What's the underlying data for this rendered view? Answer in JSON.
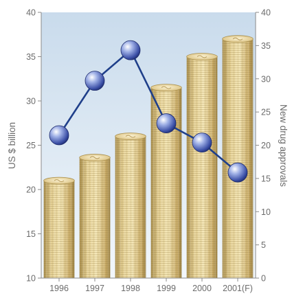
{
  "chart_data": {
    "type": "bar+line",
    "categories": [
      "1996",
      "1997",
      "1998",
      "1999",
      "2000",
      "2001(F)"
    ],
    "series": [
      {
        "axis": "left",
        "mark": "bar (stacked coins)",
        "values": [
          21,
          23.6,
          26,
          31.5,
          35,
          37
        ]
      },
      {
        "axis": "right",
        "mark": "line with circular markers",
        "values": [
          21.5,
          29.7,
          34.3,
          23.3,
          20.4,
          15.9
        ]
      }
    ],
    "ylabel": "US $ billion",
    "y2label": "New drug approvals",
    "ylim": [
      10,
      40
    ],
    "y2lim": [
      0,
      40
    ],
    "yticks": [
      "10",
      "15",
      "20",
      "25",
      "30",
      "35",
      "40"
    ],
    "y2ticks": [
      "0",
      "5",
      "10",
      "15",
      "20",
      "25",
      "30",
      "35",
      "40"
    ],
    "legend": "none",
    "grid": false,
    "colors": {
      "background_top": "#c9dbec",
      "background_bottom": "#f2f7fb",
      "coin": "#e1c98a",
      "coin_dark": "#a98f4e",
      "line": "#1f3f8a",
      "marker": "#3b4fa6",
      "axis": "#8a8a8a"
    }
  }
}
